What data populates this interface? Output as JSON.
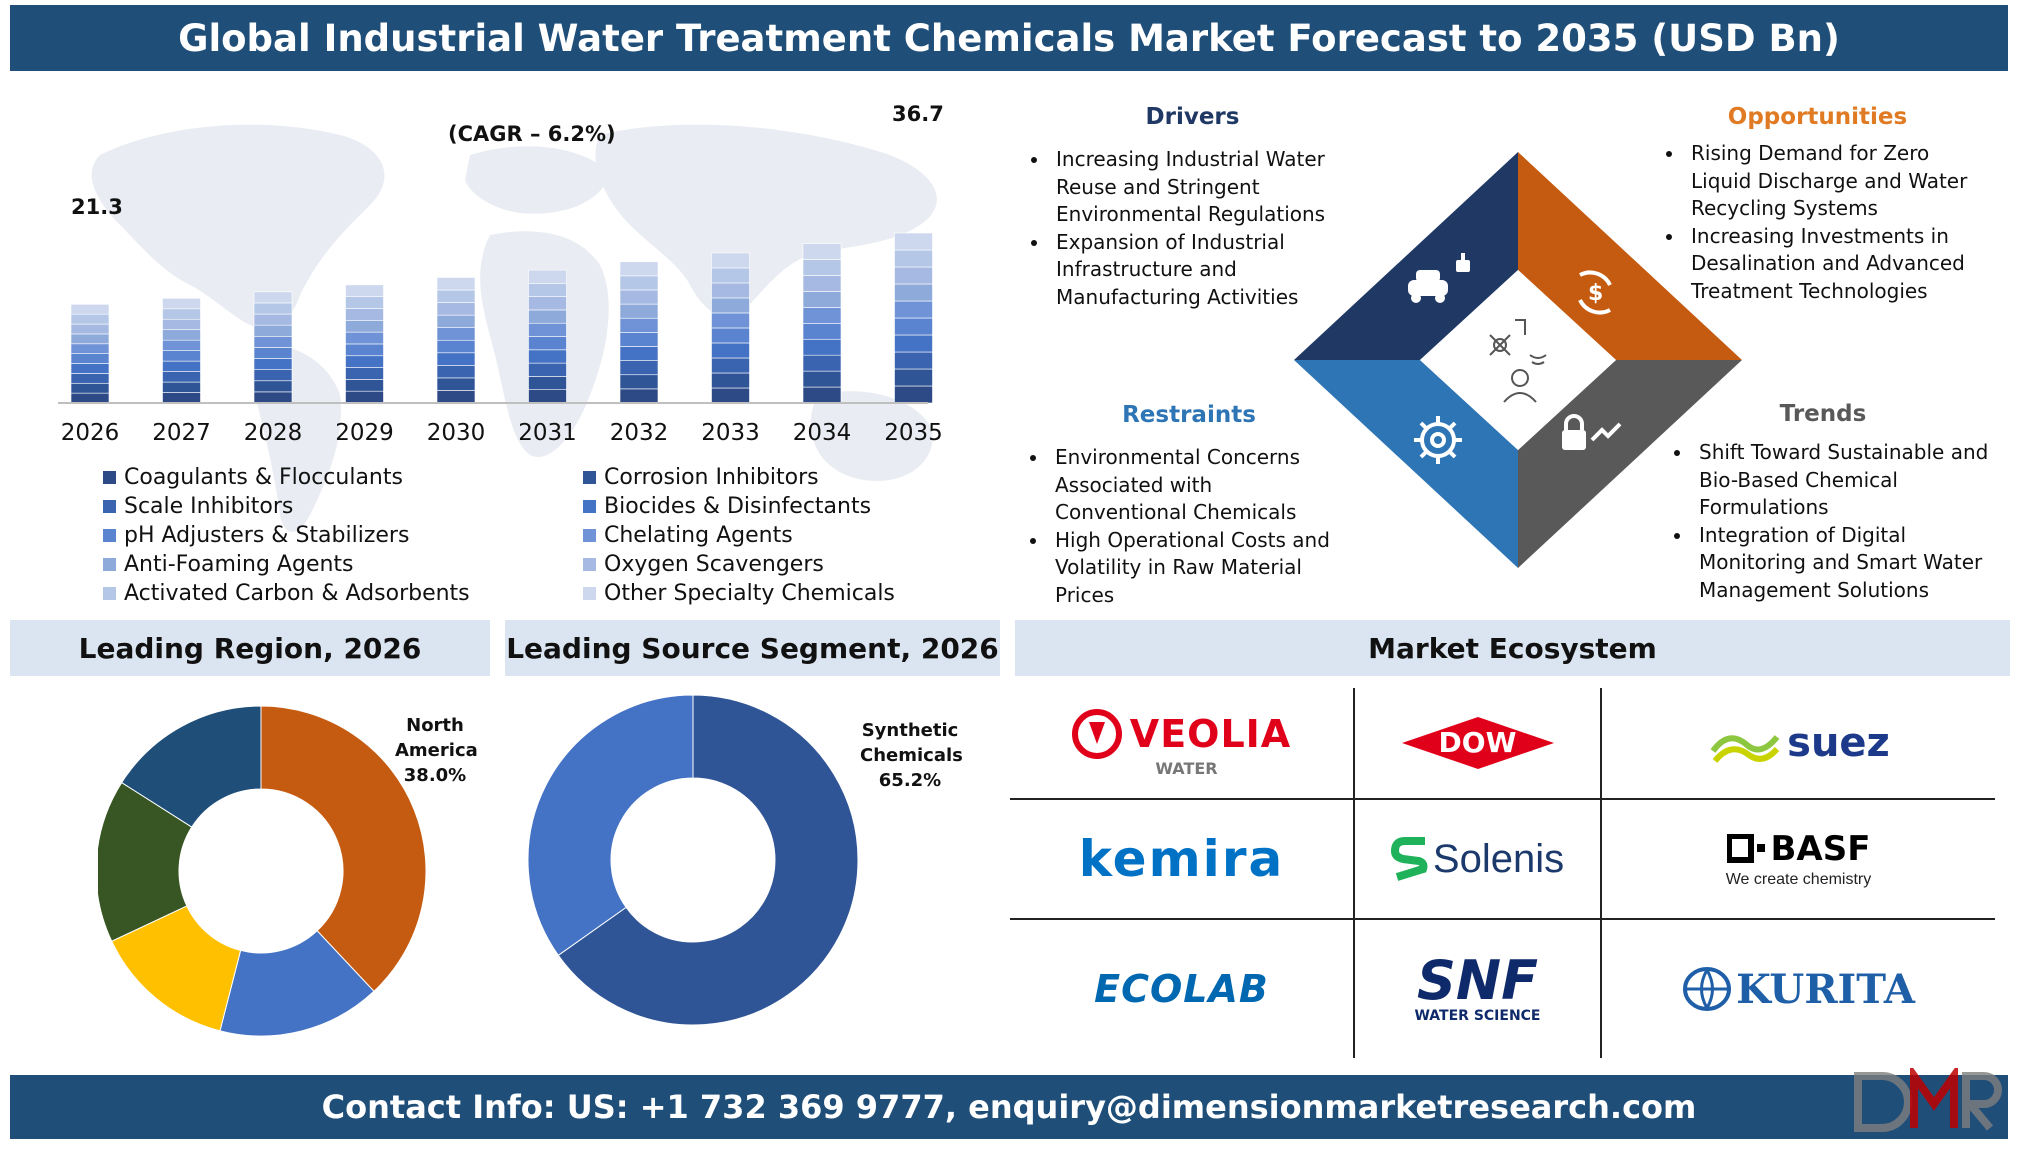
{
  "header": {
    "title": "Global Industrial Water Treatment Chemicals Market Forecast to 2035 (USD Bn)"
  },
  "chart_data": [
    {
      "type": "bar",
      "stacked": true,
      "categories": [
        "2026",
        "2027",
        "2028",
        "2029",
        "2030",
        "2031",
        "2032",
        "2033",
        "2034",
        "2035"
      ],
      "totals": [
        21.3,
        22.6,
        24.0,
        25.5,
        27.1,
        28.7,
        30.5,
        32.4,
        34.4,
        36.7
      ],
      "data_labels": {
        "first": "21.3",
        "last": "36.7"
      },
      "annotation": "(CAGR – 6.2%)",
      "series": [
        {
          "name": "Coagulants & Flocculants",
          "color": "#2d4a86"
        },
        {
          "name": "Corrosion Inhibitors",
          "color": "#2f5597"
        },
        {
          "name": "Scale Inhibitors",
          "color": "#3a63b0"
        },
        {
          "name": "Biocides & Disinfectants",
          "color": "#4472c4"
        },
        {
          "name": "pH Adjusters & Stabilizers",
          "color": "#5b84d0"
        },
        {
          "name": "Chelating Agents",
          "color": "#6f93d6"
        },
        {
          "name": "Anti-Foaming Agents",
          "color": "#8eaadb"
        },
        {
          "name": "Oxygen Scavengers",
          "color": "#a5b9e2"
        },
        {
          "name": "Activated Carbon & Adsorbents",
          "color": "#b4c7e7"
        },
        {
          "name": "Other Specialty Chemicals",
          "color": "#cdd8ee"
        }
      ],
      "grid": false,
      "legend_position": "bottom"
    },
    {
      "type": "pie",
      "title": "Leading Region, 2026",
      "slices": [
        {
          "value": 38.0,
          "color": "#c55a11"
        },
        {
          "value": 16.0,
          "color": "#4472c4"
        },
        {
          "value": 14.0,
          "color": "#ffc000"
        },
        {
          "value": 16.0,
          "color": "#375623"
        },
        {
          "value": 16.0,
          "color": "#1f4e79"
        }
      ],
      "label": {
        "line1": "North",
        "line2": "America",
        "value": "38.0%"
      }
    },
    {
      "type": "pie",
      "title": "Leading Source Segment, 2026",
      "slices": [
        {
          "value": 65.2,
          "color": "#2f5597"
        },
        {
          "value": 34.8,
          "color": "#4472c4"
        }
      ],
      "label": {
        "line1": "Synthetic",
        "line2": "Chemicals",
        "value": "65.2%"
      }
    }
  ],
  "dynamics": {
    "drivers": {
      "title": "Drivers",
      "color": "#1f3864",
      "items": [
        "Increasing Industrial Water Reuse and Stringent Environmental Regulations",
        "Expansion of Industrial Infrastructure and Manufacturing Activities"
      ]
    },
    "opportunities": {
      "title": "Opportunities",
      "color": "#e07b23",
      "items": [
        "Rising Demand for Zero Liquid Discharge and Water Recycling Systems",
        "Increasing Investments in Desalination and Advanced Treatment Technologies"
      ]
    },
    "restraints": {
      "title": "Restraints",
      "color": "#2e75b6",
      "items": [
        "Environmental Concerns Associated with Conventional Chemicals",
        "High Operational Costs and Volatility in Raw Material Prices"
      ]
    },
    "trends": {
      "title": "Trends",
      "color": "#595959",
      "items": [
        "Shift Toward Sustainable and Bio-Based Chemical Formulations",
        "Integration of Digital Monitoring and Smart Water Management Solutions"
      ]
    }
  },
  "sections": {
    "region": "Leading Region, 2026",
    "source": "Leading Source Segment, 2026",
    "ecosystem": "Market Ecosystem"
  },
  "ecosystem": {
    "veolia": {
      "name": "VEOLIA",
      "sub": "WATER"
    },
    "dow": {
      "name": "DOW"
    },
    "suez": {
      "name": "suez"
    },
    "kemira": {
      "name": "kemira"
    },
    "solenis": {
      "name": "Solenis"
    },
    "basf": {
      "name": "BASF",
      "sub": "We create chemistry"
    },
    "ecolab": {
      "name": "ECOLAB"
    },
    "snf": {
      "name": "SNF",
      "sub": "WATER SCIENCE"
    },
    "kurita": {
      "name": "KURITA"
    }
  },
  "footer": {
    "contact": "Contact Info: US: +1 732 369 9777, enquiry@dimensionmarketresearch.com"
  }
}
